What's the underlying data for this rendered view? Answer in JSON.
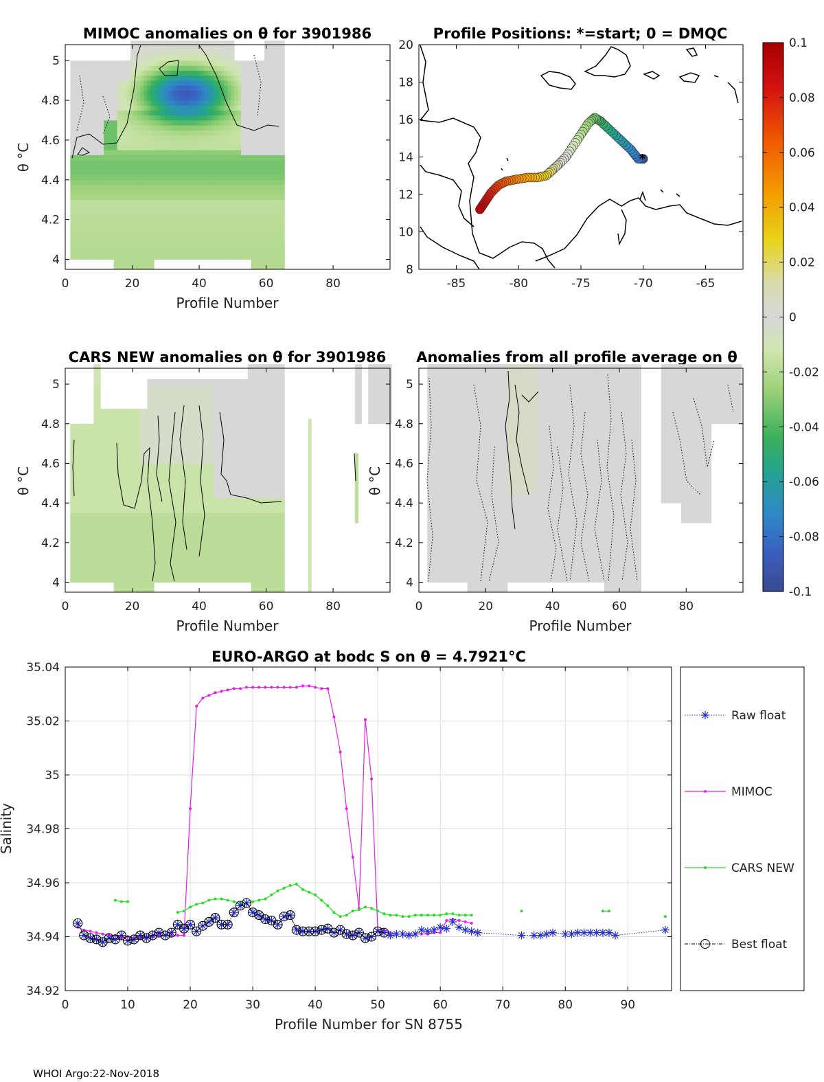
{
  "footer": "WHOI Argo:22-Nov-2018",
  "colors": {
    "raw_float": "#1f2bd6",
    "mimoc": "#e81ee8",
    "cars": "#22e022",
    "best_float": "#000000",
    "grid": "#dddddd",
    "anomaly_gray": "#d7d7d7"
  },
  "chart_data": [
    {
      "id": "mimoc_anomalies",
      "type": "heatmap",
      "title": "MIMOC anomalies on θ  for 3901986",
      "xlabel": "Profile Number",
      "ylabel": "θ °C",
      "xlim": [
        0,
        97
      ],
      "ylim": [
        3.95,
        5.08
      ],
      "xticks": [
        "0",
        "20",
        "40",
        "60",
        "80"
      ],
      "yticks": [
        "4",
        "4.2",
        "4.4",
        "4.6",
        "4.8",
        "5"
      ],
      "description_values": {
        "min_anomaly": -0.09,
        "max_anomaly": 0.0,
        "profile_range": [
          2,
          65
        ]
      }
    },
    {
      "id": "profile_positions",
      "type": "scatter",
      "title": "Profile Positions: *=start; 0 = DMQC",
      "xlim": [
        -88,
        -62
      ],
      "ylim": [
        8,
        20
      ],
      "xticks": [
        "-85",
        "-80",
        "-75",
        "-70",
        "-65"
      ],
      "yticks": [
        "8",
        "10",
        "12",
        "14",
        "16",
        "18",
        "20"
      ],
      "track_lon": [
        -70.0,
        -70.4,
        -71.0,
        -71.8,
        -72.6,
        -73.4,
        -73.9,
        -74.4,
        -75.0,
        -75.6,
        -76.2,
        -76.8,
        -77.3,
        -77.8,
        -78.5,
        -79.3,
        -80.2,
        -81.0,
        -81.6,
        -82.2,
        -82.7,
        -83.1
      ],
      "track_lat": [
        13.9,
        13.9,
        14.4,
        14.9,
        15.4,
        15.9,
        16.1,
        15.8,
        15.2,
        14.6,
        14.0,
        13.6,
        13.3,
        13.0,
        12.9,
        12.9,
        12.8,
        12.7,
        12.5,
        12.1,
        11.6,
        11.2
      ],
      "start_marker": "*"
    },
    {
      "id": "colorbar",
      "type": "heatmap",
      "range": [
        -0.1,
        0.1
      ],
      "ticks": [
        "0.1",
        "0.08",
        "0.06",
        "0.04",
        "0.02",
        "0",
        "-0.02",
        "-0.04",
        "-0.06",
        "-0.08",
        "-0.1"
      ]
    },
    {
      "id": "cars_anomalies",
      "type": "heatmap",
      "title": "CARS NEW anomalies on θ for 3901986",
      "xlabel": "Profile Number",
      "ylabel": "θ °C",
      "xlim": [
        0,
        97
      ],
      "ylim": [
        3.95,
        5.08
      ],
      "xticks": [
        "0",
        "20",
        "40",
        "60",
        "80"
      ],
      "yticks": [
        "4",
        "4.2",
        "4.4",
        "4.6",
        "4.8",
        "5"
      ]
    },
    {
      "id": "all_profile_anomalies",
      "type": "heatmap",
      "title": "Anomalies from all profile average on θ",
      "xlabel": "Profile Number",
      "ylabel": "θ °C",
      "xlim": [
        0,
        97
      ],
      "ylim": [
        3.95,
        5.08
      ],
      "xticks": [
        "0",
        "20",
        "40",
        "60",
        "80"
      ],
      "yticks": [
        "4",
        "4.2",
        "4.4",
        "4.6",
        "4.8",
        "5"
      ]
    },
    {
      "id": "salinity_timeseries",
      "type": "line",
      "title": "EURO-ARGO at bodc S on θ = 4.7921°C",
      "xlabel": "Profile Number for SN 8755",
      "ylabel": "Salinity",
      "xlim": [
        0,
        97
      ],
      "ylim": [
        34.92,
        35.04
      ],
      "xticks": [
        "0",
        "10",
        "20",
        "30",
        "40",
        "50",
        "60",
        "70",
        "80",
        "90"
      ],
      "yticks": [
        "34.92",
        "34.94",
        "34.96",
        "34.98",
        "35",
        "35.02",
        "35.04"
      ],
      "legend": [
        "Raw float",
        "MIMOC",
        "CARS NEW",
        "Best float"
      ],
      "series": [
        {
          "name": "Raw float",
          "x": [
            2,
            3,
            4,
            5,
            6,
            7,
            8,
            9,
            10,
            11,
            12,
            13,
            14,
            15,
            16,
            17,
            18,
            19,
            20,
            21,
            22,
            23,
            24,
            25,
            26,
            27,
            28,
            29,
            30,
            31,
            32,
            33,
            34,
            35,
            36,
            37,
            38,
            39,
            40,
            41,
            42,
            43,
            44,
            45,
            46,
            47,
            48,
            49,
            50,
            51,
            52,
            53,
            54,
            55,
            56,
            57,
            58,
            59,
            60,
            61,
            62,
            63,
            64,
            65,
            66,
            73,
            75,
            76,
            77,
            78,
            80,
            81,
            82,
            83,
            84,
            85,
            86,
            87,
            88,
            96
          ],
          "values": [
            34.945,
            34.9405,
            34.9395,
            34.939,
            34.938,
            34.9395,
            34.939,
            34.9405,
            34.9385,
            34.939,
            34.9405,
            34.9395,
            34.9405,
            34.9415,
            34.9405,
            34.9415,
            34.9445,
            34.943,
            34.9445,
            34.942,
            34.944,
            34.9455,
            34.947,
            34.9445,
            34.9445,
            34.949,
            34.9515,
            34.9525,
            34.949,
            34.948,
            34.9465,
            34.946,
            34.9445,
            34.9475,
            34.948,
            34.9425,
            34.942,
            34.942,
            34.942,
            34.9425,
            34.943,
            34.9415,
            34.9425,
            34.941,
            34.9405,
            34.9415,
            34.9395,
            34.94,
            34.942,
            34.9415,
            34.9405,
            34.941,
            34.941,
            34.9405,
            34.941,
            34.9425,
            34.942,
            34.9425,
            34.9435,
            34.943,
            34.9455,
            34.9435,
            34.9425,
            34.942,
            34.9415,
            34.9405,
            34.9405,
            34.9405,
            34.941,
            34.9415,
            34.941,
            34.941,
            34.9415,
            34.9415,
            34.9415,
            34.9415,
            34.9415,
            34.9415,
            34.9405,
            34.9425
          ]
        },
        {
          "name": "MIMOC",
          "x": [
            2,
            3,
            4,
            5,
            6,
            7,
            8,
            9,
            10,
            11,
            12,
            13,
            14,
            15,
            16,
            17,
            18,
            19,
            20,
            21,
            22,
            23,
            24,
            25,
            26,
            27,
            28,
            29,
            30,
            31,
            32,
            33,
            34,
            35,
            36,
            37,
            38,
            39,
            40,
            41,
            42,
            43,
            44,
            45,
            46,
            47,
            48,
            49,
            50,
            51,
            52,
            53,
            54,
            55,
            56,
            57,
            58,
            59,
            60,
            61,
            62,
            63,
            64,
            65
          ],
          "values": [
            34.9435,
            34.9425,
            34.942,
            34.9415,
            34.941,
            34.9405,
            34.9405,
            34.9395,
            34.94,
            34.9395,
            34.9395,
            34.94,
            34.94,
            34.9405,
            34.9405,
            34.9405,
            34.9405,
            34.9405,
            34.9875,
            35.0255,
            35.0285,
            35.0295,
            35.0305,
            35.031,
            35.0315,
            35.032,
            35.032,
            35.0325,
            35.0325,
            35.0325,
            35.0325,
            35.0325,
            35.0325,
            35.0325,
            35.0325,
            35.0325,
            35.033,
            35.033,
            35.0325,
            35.032,
            35.032,
            35.0215,
            35.0085,
            34.9875,
            34.9695,
            34.9505,
            35.0205,
            34.9985,
            34.9425,
            34.9425,
            34.9415,
            34.941,
            34.941,
            34.941,
            34.941,
            34.941,
            34.941,
            34.9415,
            34.9415,
            34.946,
            34.9465,
            34.946,
            34.9455,
            34.945
          ]
        },
        {
          "name": "CARS NEW",
          "x": [
            8,
            9,
            10,
            18,
            19,
            20,
            21,
            22,
            23,
            24,
            25,
            26,
            27,
            28,
            29,
            30,
            31,
            32,
            33,
            34,
            35,
            36,
            37,
            38,
            39,
            40,
            41,
            42,
            43,
            44,
            45,
            46,
            47,
            48,
            49,
            50,
            51,
            52,
            53,
            54,
            55,
            56,
            57,
            58,
            59,
            60,
            61,
            62,
            63,
            64,
            65,
            73,
            86,
            87,
            96
          ],
          "values": [
            34.9535,
            34.953,
            34.953,
            34.949,
            34.9495,
            34.951,
            34.952,
            34.9525,
            34.9535,
            34.954,
            34.954,
            34.9535,
            34.953,
            34.9525,
            34.9525,
            34.953,
            34.9535,
            34.954,
            34.9555,
            34.957,
            34.958,
            34.959,
            34.9595,
            34.9575,
            34.9565,
            34.9555,
            34.9535,
            34.9515,
            34.949,
            34.9475,
            34.948,
            34.9495,
            34.95,
            34.951,
            34.9505,
            34.9495,
            34.9485,
            34.948,
            34.948,
            34.9475,
            34.9475,
            34.948,
            34.948,
            34.948,
            34.948,
            34.948,
            34.9485,
            34.9485,
            34.948,
            34.948,
            34.948,
            34.9495,
            34.9495,
            34.9495,
            34.9475
          ]
        },
        {
          "name": "Best float",
          "x": [
            2,
            3,
            4,
            5,
            6,
            7,
            8,
            9,
            10,
            11,
            12,
            13,
            14,
            15,
            16,
            17,
            18,
            19,
            20,
            21,
            22,
            23,
            24,
            25,
            26,
            27,
            28,
            29,
            30,
            31,
            32,
            33,
            34,
            35,
            36,
            37,
            38,
            39,
            40,
            41,
            42,
            43,
            44,
            45,
            46,
            47,
            48,
            49,
            50,
            51
          ],
          "values": [
            34.945,
            34.9405,
            34.9395,
            34.939,
            34.938,
            34.9395,
            34.939,
            34.9405,
            34.9385,
            34.939,
            34.9405,
            34.9395,
            34.9405,
            34.9415,
            34.9405,
            34.9415,
            34.9445,
            34.943,
            34.9445,
            34.942,
            34.944,
            34.9455,
            34.947,
            34.9445,
            34.9445,
            34.949,
            34.9515,
            34.9525,
            34.949,
            34.948,
            34.9465,
            34.946,
            34.9445,
            34.9475,
            34.948,
            34.9425,
            34.942,
            34.942,
            34.942,
            34.9425,
            34.943,
            34.9415,
            34.9425,
            34.941,
            34.9405,
            34.9415,
            34.9395,
            34.94,
            34.942,
            34.9415
          ]
        }
      ]
    }
  ]
}
